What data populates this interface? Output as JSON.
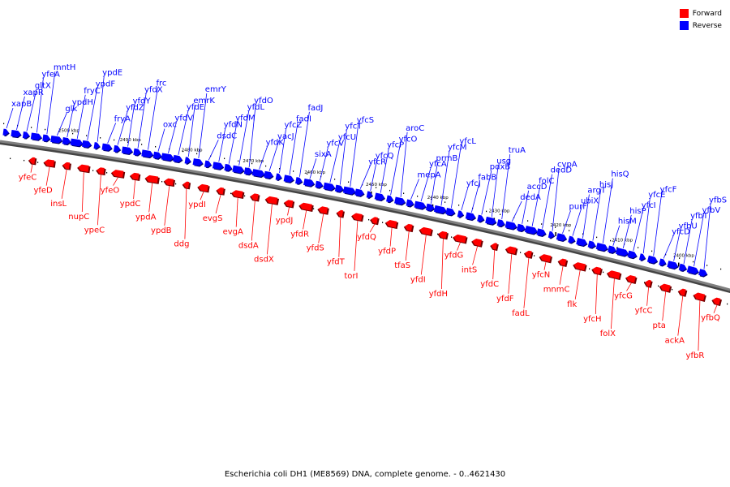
{
  "legend": [
    {
      "label": "Forward",
      "color": "#ff0000"
    },
    {
      "label": "Reverse",
      "color": "#0000ff"
    }
  ],
  "caption": "Escherichia coli DH1 (ME8569) DNA, complete genome. - 0..4621430",
  "colors": {
    "forward": "#ff0000",
    "reverse": "#0000ff",
    "axis": "#808080"
  },
  "kbp_labels": [
    "2500 kbp",
    "2490 kbp",
    "2480 kbp",
    "2470 kbp",
    "2460 kbp",
    "2450 kbp",
    "2440 kbp",
    "2430 kbp",
    "2420 kbp",
    "2410 kbp",
    "2400 kbp"
  ],
  "reverse_genes": [
    "xapB",
    "xapR",
    "gltX",
    "yfeA",
    "mntH",
    "glk",
    "ypdH",
    "fryC",
    "ypdF",
    "ypdE",
    "fryA",
    "yfdZ",
    "yfdY",
    "yfdX",
    "frc",
    "oxc",
    "yfdV",
    "yfdE",
    "emrK",
    "emrY",
    "dsdC",
    "yfdN",
    "yfdM",
    "yfdL",
    "yfdO",
    "yfdK",
    "vacJ",
    "yfcZ",
    "fadI",
    "fadJ",
    "sixA",
    "yfcV",
    "yfcU",
    "yfcT",
    "yfcS",
    "yfcR",
    "yfcQ",
    "yfcP",
    "yfcO",
    "aroC",
    "mepA",
    "yfcA",
    "prmB",
    "yfcM",
    "yfcL",
    "yfcJ",
    "fabB",
    "pdxB",
    "usg",
    "truA",
    "dedA",
    "accD",
    "folC",
    "dedD",
    "cvpA",
    "purF",
    "ubiX",
    "argT",
    "hisJ",
    "hisQ",
    "hisM",
    "hisP",
    "yfcI",
    "yfcE",
    "yfcF",
    "yfcD",
    "yfbU",
    "yfbT",
    "yfbV",
    "yfbS"
  ],
  "forward_genes": [
    "yfeC",
    "yfeD",
    "insL",
    "nupC",
    "ypeC",
    "yfeO",
    "ypdC",
    "ypdA",
    "ypdB",
    "ddg",
    "ypdI",
    "evgS",
    "evgA",
    "dsdA",
    "dsdX",
    "ypdJ",
    "yfdR",
    "yfdS",
    "yfdT",
    "torI",
    "yfdQ",
    "yfdP",
    "tfaS",
    "yfdI",
    "yfdH",
    "yfdG",
    "intS",
    "yfdC",
    "yfdF",
    "fadL",
    "yfcN",
    "mnmC",
    "flk",
    "yfcH",
    "folX",
    "yfcG",
    "yfcC",
    "pta",
    "ackA",
    "yfbR",
    "yfbQ"
  ]
}
